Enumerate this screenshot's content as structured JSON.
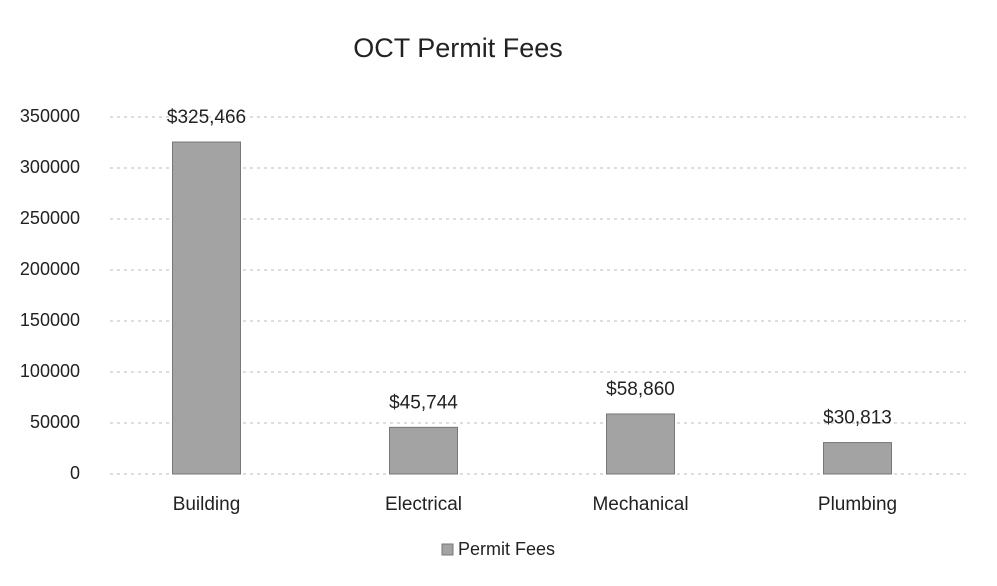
{
  "chart_data": {
    "type": "bar",
    "title": "OCT Permit Fees",
    "categories": [
      "Building",
      "Electrical",
      "Mechanical",
      "Plumbing"
    ],
    "series": [
      {
        "name": "Permit Fees",
        "color": "#a3a3a3",
        "values": [
          325466,
          45744,
          58860,
          30813
        ],
        "value_labels": [
          "$325,466",
          "$45,744",
          "$58,860",
          "$30,813"
        ]
      }
    ],
    "ylim": [
      0,
      350000
    ],
    "yticks": [
      0,
      50000,
      100000,
      150000,
      200000,
      250000,
      300000,
      350000
    ],
    "grid": true,
    "legend": "bottom"
  }
}
